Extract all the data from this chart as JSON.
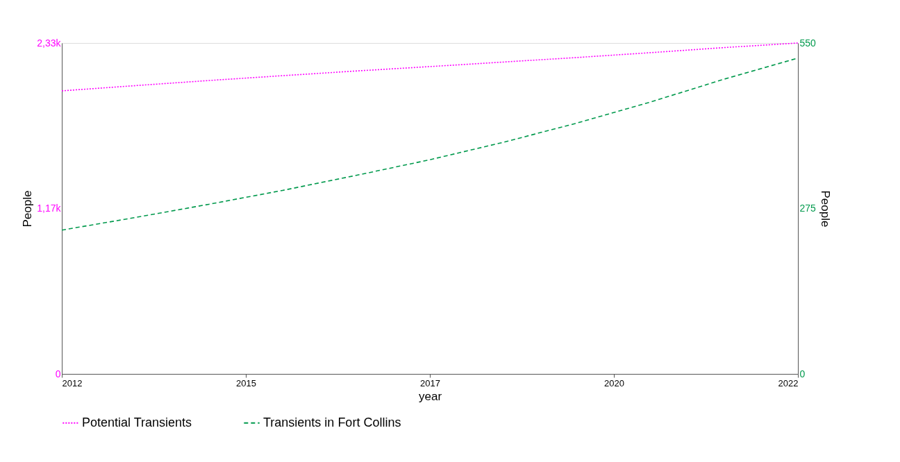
{
  "chart_data": {
    "type": "line",
    "xlabel": "year",
    "ylabel": "People",
    "y2label": "People",
    "x": [
      2012,
      2013,
      2014,
      2015,
      2016,
      2017,
      2018,
      2019,
      2020,
      2021,
      2022
    ],
    "xlim": [
      2012,
      2022
    ],
    "xticks": [
      2012,
      {
        "value": 2014.5,
        "label": "2015"
      },
      2017,
      {
        "value": 2019.5,
        "label": "2020"
      },
      2022
    ],
    "ylim": [
      0,
      2330
    ],
    "yticks": [
      0,
      {
        "value": 1165,
        "label": "1,17k"
      },
      {
        "value": 2330,
        "label": "2,33k"
      }
    ],
    "y2lim": [
      0,
      550
    ],
    "y2ticks": [
      0,
      275,
      550
    ],
    "series": [
      {
        "name": "Potential Transients",
        "color": "#ff00ff",
        "line_style": "dotted",
        "values": [
          1993,
          2030,
          2066,
          2100,
          2133,
          2164,
          2196,
          2228,
          2262,
          2298,
          2330
        ]
      },
      {
        "name": "Transients in Fort Collins",
        "color": "#00994c",
        "line_style": "dashed",
        "axis": "y2",
        "values": [
          239,
          260,
          282,
          305,
          330,
          356,
          385,
          417,
          452,
          490,
          525
        ]
      }
    ],
    "legend": "bottom",
    "grid": false,
    "marker": "none"
  }
}
